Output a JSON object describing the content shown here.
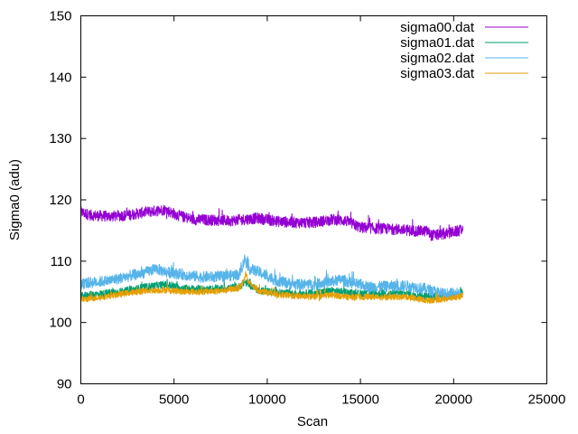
{
  "chart_data": {
    "type": "line",
    "title": "",
    "xlabel": "Scan",
    "ylabel": "Sigma0 (adu)",
    "xlim": [
      0,
      25000
    ],
    "ylim": [
      90,
      150
    ],
    "xticks": [
      0,
      5000,
      10000,
      15000,
      20000,
      25000
    ],
    "yticks": [
      90,
      100,
      110,
      120,
      130,
      140,
      150
    ],
    "grid": false,
    "legend_position": "top-right",
    "series": [
      {
        "name": "sigma00.dat",
        "color": "#9400d3",
        "noise": 0.9,
        "x": [
          0,
          500,
          1500,
          2500,
          3500,
          4500,
          5200,
          6000,
          7000,
          8000,
          8700,
          9500,
          10500,
          11500,
          12500,
          13500,
          14200,
          15000,
          16000,
          17000,
          18000,
          18600,
          18800,
          19500,
          20500
        ],
        "y": [
          118,
          117.5,
          117.3,
          117.5,
          118,
          118.4,
          117.5,
          116.8,
          116.7,
          116.6,
          116.8,
          117,
          116.5,
          116.3,
          116.3,
          116.8,
          116.6,
          115.5,
          115.3,
          115.2,
          114.9,
          114.9,
          114.2,
          114.4,
          115.1
        ]
      },
      {
        "name": "sigma01.dat",
        "color": "#009e73",
        "noise": 0.6,
        "x": [
          0,
          500,
          1500,
          2500,
          3500,
          4500,
          5500,
          6500,
          7500,
          8500,
          8800,
          9500,
          10500,
          11500,
          12500,
          13500,
          14500,
          15500,
          16500,
          17500,
          18500,
          19500,
          20300,
          20500
        ],
        "y": [
          104.3,
          104.5,
          104.8,
          105.2,
          105.8,
          106.2,
          105.6,
          105.4,
          105.5,
          105.8,
          106.6,
          105.3,
          104.9,
          104.7,
          104.8,
          105.2,
          104.8,
          104.7,
          104.7,
          104.7,
          104.3,
          104.3,
          104.5,
          105.2
        ]
      },
      {
        "name": "sigma02.dat",
        "color": "#56b4e9",
        "noise": 0.9,
        "x": [
          0,
          500,
          1500,
          2500,
          3500,
          4000,
          4500,
          5500,
          6500,
          7500,
          8500,
          8700,
          8800,
          9000,
          9500,
          10500,
          11500,
          12500,
          13500,
          14000,
          14500,
          15500,
          16500,
          17500,
          18500,
          19500,
          20400
        ],
        "y": [
          106.3,
          106.5,
          106.8,
          107.5,
          108.2,
          108.8,
          108.3,
          107.8,
          107.4,
          107.5,
          107.8,
          109.5,
          110.5,
          108.8,
          108.3,
          106.8,
          106.2,
          106.2,
          106.7,
          107,
          106.4,
          105.8,
          105.9,
          106,
          105.5,
          104.6,
          104.9
        ]
      },
      {
        "name": "sigma03.dat",
        "color": "#e69f00",
        "noise": 0.5,
        "x": [
          0,
          500,
          1500,
          2500,
          3500,
          4500,
          5500,
          6500,
          7500,
          8500,
          8700,
          8850,
          9000,
          9500,
          10500,
          11500,
          12500,
          13500,
          14500,
          15500,
          16500,
          17500,
          18500,
          19500,
          20500
        ],
        "y": [
          103.7,
          103.9,
          104.3,
          104.8,
          105.2,
          105.3,
          105,
          105,
          105.2,
          105.6,
          106.5,
          108,
          106.5,
          105.2,
          104.6,
          104.3,
          104.2,
          104.5,
          104.1,
          104.2,
          104.1,
          104.2,
          103.6,
          103.8,
          104.3
        ]
      }
    ]
  }
}
